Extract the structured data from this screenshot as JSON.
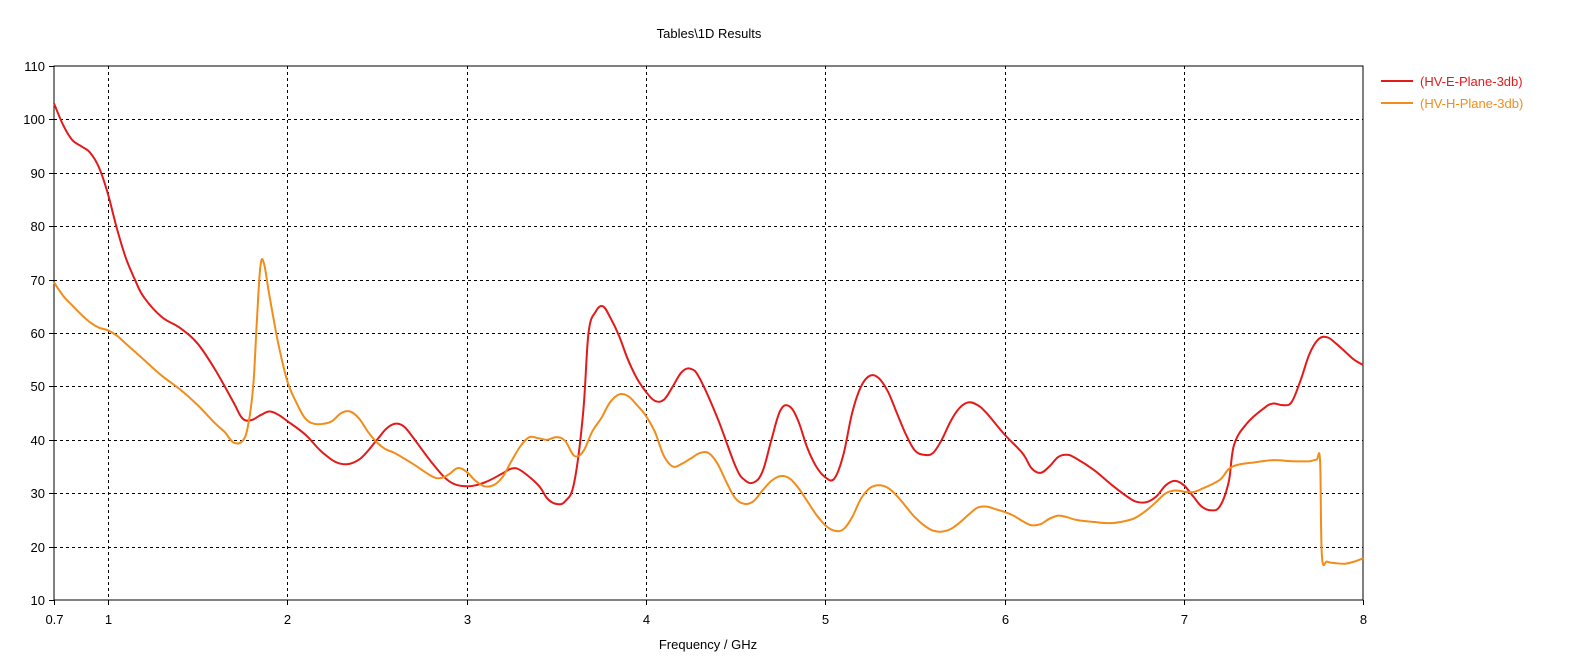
{
  "chart_data": {
    "type": "line",
    "title": "Tables\\1D Results",
    "xlabel": "Frequency / GHz",
    "ylabel": "",
    "xlim": [
      0.7,
      8
    ],
    "ylim": [
      10,
      110
    ],
    "x_ticks": [
      0.7,
      1,
      2,
      3,
      4,
      5,
      6,
      7,
      8
    ],
    "x_tick_labels": [
      "0.7",
      "1",
      "2",
      "3",
      "4",
      "5",
      "6",
      "7",
      "8"
    ],
    "y_ticks": [
      10,
      20,
      30,
      40,
      50,
      60,
      70,
      80,
      90,
      100,
      110
    ],
    "y_tick_labels": [
      "10",
      "20",
      "30",
      "40",
      "50",
      "60",
      "70",
      "80",
      "90",
      "100",
      "110"
    ],
    "grid": true,
    "legend_position": "top-right outside",
    "series": [
      {
        "name": "(HV-E-Plane-3db)",
        "color": "#e31a1a",
        "points": [
          [
            0.7,
            103
          ],
          [
            0.75,
            99
          ],
          [
            0.8,
            96.2
          ],
          [
            0.85,
            95
          ],
          [
            0.9,
            93.8
          ],
          [
            0.95,
            91
          ],
          [
            1.0,
            86
          ],
          [
            1.05,
            79.5
          ],
          [
            1.1,
            74
          ],
          [
            1.15,
            70
          ],
          [
            1.2,
            66.7
          ],
          [
            1.3,
            63
          ],
          [
            1.4,
            61
          ],
          [
            1.5,
            58
          ],
          [
            1.6,
            53
          ],
          [
            1.7,
            47
          ],
          [
            1.75,
            44
          ],
          [
            1.8,
            43.7
          ],
          [
            1.85,
            44.6
          ],
          [
            1.9,
            45.3
          ],
          [
            1.95,
            44.7
          ],
          [
            2.0,
            43.5
          ],
          [
            2.1,
            41
          ],
          [
            2.2,
            37.5
          ],
          [
            2.3,
            35.5
          ],
          [
            2.4,
            36.3
          ],
          [
            2.5,
            40
          ],
          [
            2.55,
            42
          ],
          [
            2.6,
            43
          ],
          [
            2.65,
            42.5
          ],
          [
            2.7,
            40.5
          ],
          [
            2.8,
            36
          ],
          [
            2.9,
            32.3
          ],
          [
            3.0,
            31.3
          ],
          [
            3.1,
            32
          ],
          [
            3.2,
            33.7
          ],
          [
            3.25,
            34.6
          ],
          [
            3.3,
            34.3
          ],
          [
            3.4,
            31.5
          ],
          [
            3.45,
            29
          ],
          [
            3.5,
            28
          ],
          [
            3.55,
            28.5
          ],
          [
            3.6,
            32
          ],
          [
            3.65,
            45
          ],
          [
            3.68,
            60
          ],
          [
            3.72,
            64
          ],
          [
            3.76,
            65
          ],
          [
            3.8,
            63
          ],
          [
            3.85,
            59.5
          ],
          [
            3.9,
            55
          ],
          [
            3.95,
            51.5
          ],
          [
            4.0,
            49
          ],
          [
            4.05,
            47.3
          ],
          [
            4.1,
            47.5
          ],
          [
            4.15,
            50
          ],
          [
            4.2,
            52.7
          ],
          [
            4.25,
            53.3
          ],
          [
            4.3,
            51.5
          ],
          [
            4.4,
            44
          ],
          [
            4.5,
            35
          ],
          [
            4.55,
            32.5
          ],
          [
            4.6,
            32
          ],
          [
            4.65,
            34
          ],
          [
            4.7,
            40
          ],
          [
            4.75,
            45.5
          ],
          [
            4.8,
            46.3
          ],
          [
            4.85,
            43.5
          ],
          [
            4.9,
            38.5
          ],
          [
            4.95,
            35
          ],
          [
            5.0,
            33
          ],
          [
            5.05,
            32.7
          ],
          [
            5.1,
            37
          ],
          [
            5.15,
            45
          ],
          [
            5.2,
            50
          ],
          [
            5.25,
            52
          ],
          [
            5.3,
            51.5
          ],
          [
            5.35,
            49
          ],
          [
            5.4,
            45
          ],
          [
            5.45,
            41
          ],
          [
            5.5,
            38
          ],
          [
            5.55,
            37.2
          ],
          [
            5.6,
            37.5
          ],
          [
            5.65,
            40
          ],
          [
            5.7,
            43.5
          ],
          [
            5.75,
            46
          ],
          [
            5.8,
            47
          ],
          [
            5.85,
            46.5
          ],
          [
            5.9,
            45
          ],
          [
            6.0,
            41
          ],
          [
            6.1,
            37.5
          ],
          [
            6.15,
            34.7
          ],
          [
            6.2,
            33.8
          ],
          [
            6.25,
            35
          ],
          [
            6.3,
            36.8
          ],
          [
            6.35,
            37.2
          ],
          [
            6.4,
            36.5
          ],
          [
            6.5,
            34.3
          ],
          [
            6.6,
            31.5
          ],
          [
            6.7,
            29
          ],
          [
            6.75,
            28.3
          ],
          [
            6.8,
            28.4
          ],
          [
            6.85,
            29.5
          ],
          [
            6.9,
            31.5
          ],
          [
            6.95,
            32.3
          ],
          [
            7.0,
            31.5
          ],
          [
            7.05,
            29.5
          ],
          [
            7.1,
            27.5
          ],
          [
            7.15,
            26.8
          ],
          [
            7.2,
            27.5
          ],
          [
            7.25,
            32
          ],
          [
            7.28,
            39
          ],
          [
            7.35,
            43
          ],
          [
            7.45,
            46
          ],
          [
            7.5,
            46.8
          ],
          [
            7.55,
            46.5
          ],
          [
            7.6,
            47
          ],
          [
            7.65,
            51
          ],
          [
            7.7,
            56
          ],
          [
            7.75,
            58.8
          ],
          [
            7.8,
            59.2
          ],
          [
            7.85,
            58
          ],
          [
            7.9,
            56.5
          ],
          [
            7.95,
            55
          ],
          [
            8.0,
            54
          ]
        ]
      },
      {
        "name": "(HV-H-Plane-3db)",
        "color": "#f28c1a",
        "points": [
          [
            0.7,
            69.5
          ],
          [
            0.75,
            67
          ],
          [
            0.8,
            65.2
          ],
          [
            0.85,
            63.5
          ],
          [
            0.9,
            62
          ],
          [
            0.95,
            61
          ],
          [
            1.0,
            60.5
          ],
          [
            1.05,
            59.5
          ],
          [
            1.1,
            58
          ],
          [
            1.2,
            55
          ],
          [
            1.3,
            52
          ],
          [
            1.4,
            49.5
          ],
          [
            1.5,
            46.5
          ],
          [
            1.6,
            43
          ],
          [
            1.65,
            41.5
          ],
          [
            1.7,
            39.5
          ],
          [
            1.75,
            39.8
          ],
          [
            1.78,
            42.5
          ],
          [
            1.81,
            50
          ],
          [
            1.83,
            62
          ],
          [
            1.85,
            72.5
          ],
          [
            1.87,
            73
          ],
          [
            1.9,
            67
          ],
          [
            1.95,
            58
          ],
          [
            2.0,
            51
          ],
          [
            2.05,
            47
          ],
          [
            2.1,
            44
          ],
          [
            2.15,
            43
          ],
          [
            2.2,
            43
          ],
          [
            2.25,
            43.5
          ],
          [
            2.3,
            45
          ],
          [
            2.35,
            45.3
          ],
          [
            2.4,
            44
          ],
          [
            2.45,
            41.5
          ],
          [
            2.5,
            39.5
          ],
          [
            2.55,
            38.2
          ],
          [
            2.6,
            37.5
          ],
          [
            2.7,
            35.5
          ],
          [
            2.8,
            33.3
          ],
          [
            2.85,
            32.8
          ],
          [
            2.9,
            33.5
          ],
          [
            2.95,
            34.7
          ],
          [
            3.0,
            34
          ],
          [
            3.05,
            32.3
          ],
          [
            3.1,
            31.3
          ],
          [
            3.15,
            31.5
          ],
          [
            3.2,
            33
          ],
          [
            3.25,
            36
          ],
          [
            3.3,
            38.8
          ],
          [
            3.35,
            40.5
          ],
          [
            3.4,
            40.3
          ],
          [
            3.45,
            40
          ],
          [
            3.5,
            40.5
          ],
          [
            3.55,
            39.8
          ],
          [
            3.6,
            37
          ],
          [
            3.65,
            37.8
          ],
          [
            3.7,
            41.5
          ],
          [
            3.75,
            44
          ],
          [
            3.8,
            47
          ],
          [
            3.85,
            48.5
          ],
          [
            3.9,
            48.2
          ],
          [
            3.95,
            46.5
          ],
          [
            4.0,
            44.5
          ],
          [
            4.05,
            41.5
          ],
          [
            4.1,
            37
          ],
          [
            4.15,
            35
          ],
          [
            4.2,
            35.5
          ],
          [
            4.25,
            36.5
          ],
          [
            4.3,
            37.5
          ],
          [
            4.35,
            37.5
          ],
          [
            4.4,
            35.5
          ],
          [
            4.45,
            32
          ],
          [
            4.5,
            29
          ],
          [
            4.55,
            28
          ],
          [
            4.6,
            28.5
          ],
          [
            4.65,
            30.5
          ],
          [
            4.7,
            32.3
          ],
          [
            4.75,
            33.2
          ],
          [
            4.8,
            32.8
          ],
          [
            4.85,
            31
          ],
          [
            4.9,
            28.5
          ],
          [
            4.95,
            26
          ],
          [
            5.0,
            24
          ],
          [
            5.05,
            23
          ],
          [
            5.1,
            23.2
          ],
          [
            5.15,
            25.5
          ],
          [
            5.2,
            29
          ],
          [
            5.25,
            31
          ],
          [
            5.3,
            31.5
          ],
          [
            5.35,
            31
          ],
          [
            5.4,
            29.5
          ],
          [
            5.45,
            27.5
          ],
          [
            5.5,
            25.5
          ],
          [
            5.55,
            24
          ],
          [
            5.6,
            23
          ],
          [
            5.65,
            22.8
          ],
          [
            5.7,
            23.3
          ],
          [
            5.75,
            24.5
          ],
          [
            5.8,
            26
          ],
          [
            5.85,
            27.3
          ],
          [
            5.9,
            27.5
          ],
          [
            5.95,
            27
          ],
          [
            6.0,
            26.5
          ],
          [
            6.05,
            25.8
          ],
          [
            6.1,
            24.8
          ],
          [
            6.15,
            24
          ],
          [
            6.2,
            24.2
          ],
          [
            6.25,
            25.2
          ],
          [
            6.3,
            25.8
          ],
          [
            6.35,
            25.5
          ],
          [
            6.4,
            25
          ],
          [
            6.5,
            24.6
          ],
          [
            6.6,
            24.4
          ],
          [
            6.7,
            25
          ],
          [
            6.75,
            25.8
          ],
          [
            6.8,
            27
          ],
          [
            6.85,
            28.5
          ],
          [
            6.9,
            30
          ],
          [
            6.95,
            30.5
          ],
          [
            7.0,
            30.3
          ],
          [
            7.05,
            30.2
          ],
          [
            7.1,
            30.8
          ],
          [
            7.2,
            32.5
          ],
          [
            7.25,
            34.5
          ],
          [
            7.3,
            35.3
          ],
          [
            7.4,
            35.8
          ],
          [
            7.5,
            36.2
          ],
          [
            7.6,
            36
          ],
          [
            7.7,
            36
          ],
          [
            7.74,
            36.3
          ],
          [
            7.76,
            36
          ],
          [
            7.77,
            18.3
          ],
          [
            7.8,
            17.2
          ],
          [
            7.85,
            16.9
          ],
          [
            7.9,
            16.8
          ],
          [
            7.95,
            17.2
          ],
          [
            8.0,
            17.8
          ]
        ]
      }
    ]
  }
}
